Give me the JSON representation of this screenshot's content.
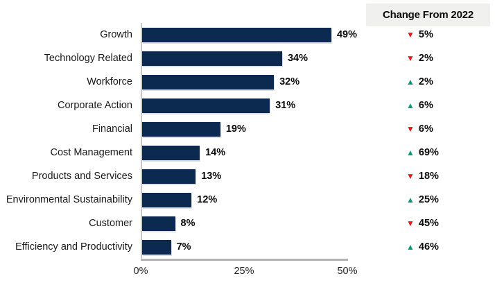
{
  "chart_data": {
    "type": "bar",
    "orientation": "horizontal",
    "title": "",
    "change_header": "Change From 2022",
    "x_ticks": [
      "0%",
      "25%",
      "50%"
    ],
    "xlim": [
      0,
      50
    ],
    "categories": [
      "Growth",
      "Technology Related",
      "Workforce",
      "Corporate Action",
      "Financial",
      "Cost Management",
      "Products and Services",
      "Environmental Sustainability",
      "Customer",
      "Efficiency and Productivity"
    ],
    "values": [
      49,
      34,
      32,
      31,
      19,
      14,
      13,
      12,
      8,
      7
    ],
    "rows": [
      {
        "label": "Growth",
        "value": 49,
        "value_label": "49%",
        "change_dir": "down",
        "change_label": "5%"
      },
      {
        "label": "Technology Related",
        "value": 34,
        "value_label": "34%",
        "change_dir": "down",
        "change_label": "2%"
      },
      {
        "label": "Workforce",
        "value": 32,
        "value_label": "32%",
        "change_dir": "up",
        "change_label": "2%"
      },
      {
        "label": "Corporate Action",
        "value": 31,
        "value_label": "31%",
        "change_dir": "up",
        "change_label": "6%"
      },
      {
        "label": "Financial",
        "value": 19,
        "value_label": "19%",
        "change_dir": "down",
        "change_label": "6%"
      },
      {
        "label": "Cost Management",
        "value": 14,
        "value_label": "14%",
        "change_dir": "up",
        "change_label": "69%"
      },
      {
        "label": "Products and Services",
        "value": 13,
        "value_label": "13%",
        "change_dir": "down",
        "change_label": "18%"
      },
      {
        "label": "Environmental Sustainability",
        "value": 12,
        "value_label": "12%",
        "change_dir": "up",
        "change_label": "25%"
      },
      {
        "label": "Customer",
        "value": 8,
        "value_label": "8%",
        "change_dir": "down",
        "change_label": "45%"
      },
      {
        "label": "Efficiency and Productivity",
        "value": 7,
        "value_label": "7%",
        "change_dir": "up",
        "change_label": "46%"
      }
    ],
    "glyphs": {
      "up": "▲",
      "down": "▼"
    },
    "colors": {
      "bar": "#0c2950",
      "up": "#009b77",
      "down": "#e51a1a",
      "header_bg": "#f0f0ee",
      "axis": "#b3b3b3"
    },
    "legend_position": "top-right",
    "grid": false
  }
}
